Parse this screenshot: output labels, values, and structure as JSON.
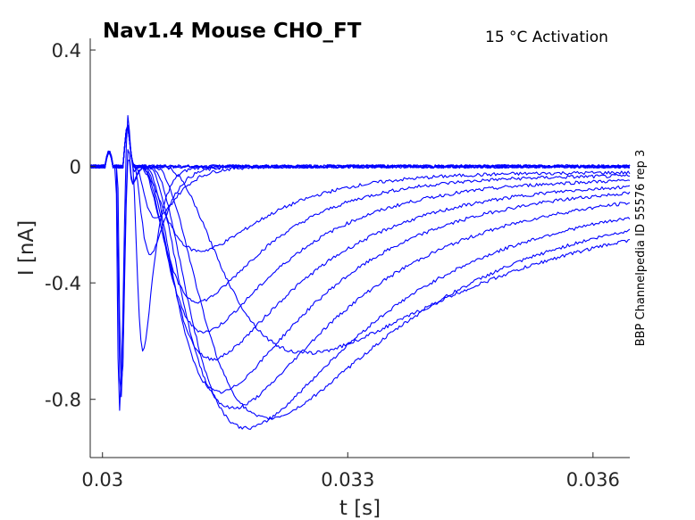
{
  "chart_data": {
    "type": "line",
    "title": "Nav1.4  Mouse  CHO_FT",
    "subtitle": "15 °C  Activation",
    "xlabel": "t [s]",
    "ylabel": "I [nA]",
    "side_note": "BBP Channelpedia ID 55576 rep 3",
    "xlim": [
      0.02985,
      0.03645
    ],
    "ylim": [
      -1.0,
      0.44
    ],
    "xticks": [
      0.03,
      0.033,
      0.036
    ],
    "xtick_labels": [
      "0.03",
      "0.033",
      "0.036"
    ],
    "yticks": [
      0.4,
      0,
      -0.4,
      -0.8
    ],
    "ytick_labels": [
      "0.4",
      "0",
      "-0.4",
      "-0.8"
    ],
    "grid": false,
    "line_color": "#0000ff",
    "series": [
      {
        "peak": -0.84,
        "delay": 6e-05,
        "tau_rise": 3e-05,
        "tau_decay": 4e-05,
        "end": 0.0
      },
      {
        "peak": -0.8,
        "delay": 7e-05,
        "tau_rise": 3e-05,
        "tau_decay": 5e-05,
        "end": 0.0
      },
      {
        "peak": -0.75,
        "delay": 8e-05,
        "tau_rise": 3e-05,
        "tau_decay": 5e-05,
        "end": 0.0
      },
      {
        "peak": -0.63,
        "delay": 0.0003,
        "tau_rise": 8e-05,
        "tau_decay": 0.00012,
        "end": 0.0
      },
      {
        "peak": -0.3,
        "delay": 0.0004,
        "tau_rise": 0.00012,
        "tau_decay": 0.00018,
        "end": 0.0
      },
      {
        "peak": -0.18,
        "delay": 0.00045,
        "tau_rise": 0.00015,
        "tau_decay": 0.00025,
        "end": 0.0
      },
      {
        "peak": -0.28,
        "delay": 0.0006,
        "tau_rise": 0.00035,
        "tau_decay": 0.0009,
        "end": -0.02
      },
      {
        "peak": -0.45,
        "delay": 0.0007,
        "tau_rise": 0.0003,
        "tau_decay": 0.001,
        "end": -0.03
      },
      {
        "peak": -0.55,
        "delay": 0.0008,
        "tau_rise": 0.0003,
        "tau_decay": 0.0012,
        "end": -0.04
      },
      {
        "peak": -0.64,
        "delay": 0.0009,
        "tau_rise": 0.00032,
        "tau_decay": 0.0014,
        "end": -0.05
      },
      {
        "peak": -0.75,
        "delay": 0.001,
        "tau_rise": 0.00035,
        "tau_decay": 0.0015,
        "end": -0.06
      },
      {
        "peak": -0.8,
        "delay": 0.00115,
        "tau_rise": 0.0004,
        "tau_decay": 0.0017,
        "end": -0.07
      },
      {
        "peak": -0.86,
        "delay": 0.0013,
        "tau_rise": 0.00045,
        "tau_decay": 0.0019,
        "end": -0.09
      },
      {
        "peak": -0.82,
        "delay": 0.0015,
        "tau_rise": 0.00055,
        "tau_decay": 0.0021,
        "end": -0.1
      },
      {
        "peak": -0.59,
        "delay": 0.002,
        "tau_rise": 0.0007,
        "tau_decay": 0.0025,
        "end": -0.11
      }
    ]
  }
}
